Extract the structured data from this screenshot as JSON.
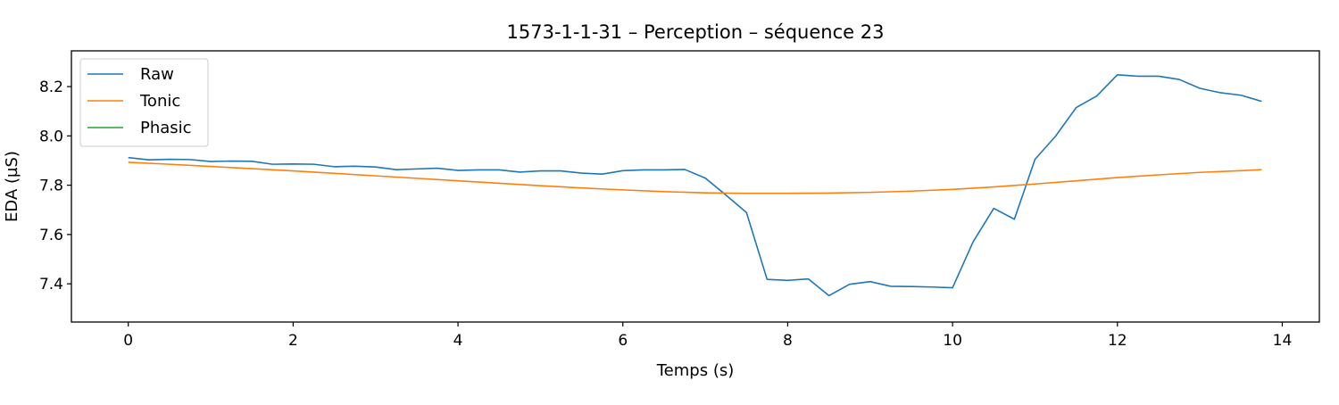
{
  "chart_data": {
    "type": "line",
    "title": "1573-1-1-31 – Perception – séquence 23",
    "xlabel": "Temps (s)",
    "ylabel": "EDA (µS)",
    "xlim": [
      -0.69,
      14.45
    ],
    "ylim": [
      7.245,
      8.345
    ],
    "xticks": [
      0,
      2,
      4,
      6,
      8,
      10,
      12,
      14
    ],
    "xtick_labels": [
      "0",
      "2",
      "4",
      "6",
      "8",
      "10",
      "12",
      "14"
    ],
    "yticks": [
      7.4,
      7.6,
      7.8,
      8.0,
      8.2
    ],
    "ytick_labels": [
      "7.4",
      "7.6",
      "7.8",
      "8.0",
      "8.2"
    ],
    "grid": false,
    "legend_position": "upper-left",
    "series": [
      {
        "name": "Raw",
        "color": "#1f77b4",
        "x": [
          0,
          0.25,
          0.5,
          0.75,
          1.0,
          1.25,
          1.5,
          1.75,
          2.0,
          2.25,
          2.5,
          2.75,
          3.0,
          3.25,
          3.5,
          3.75,
          4.0,
          4.25,
          4.5,
          4.75,
          5.0,
          5.25,
          5.5,
          5.75,
          6.0,
          6.25,
          6.5,
          6.75,
          7.0,
          7.25,
          7.5,
          7.75,
          8.0,
          8.25,
          8.5,
          8.75,
          9.0,
          9.25,
          9.5,
          9.75,
          10.0,
          10.25,
          10.5,
          10.75,
          11.0,
          11.25,
          11.5,
          11.75,
          12.0,
          12.25,
          12.5,
          12.75,
          13.0,
          13.25,
          13.5,
          13.75
        ],
        "y": [
          7.912,
          7.903,
          7.905,
          7.904,
          7.896,
          7.898,
          7.897,
          7.885,
          7.886,
          7.885,
          7.875,
          7.877,
          7.874,
          7.863,
          7.866,
          7.869,
          7.86,
          7.862,
          7.862,
          7.853,
          7.858,
          7.858,
          7.849,
          7.845,
          7.859,
          7.862,
          7.862,
          7.864,
          7.829,
          7.76,
          7.689,
          7.418,
          7.414,
          7.42,
          7.352,
          7.398,
          7.409,
          7.39,
          7.389,
          7.387,
          7.384,
          7.571,
          7.706,
          7.662,
          7.905,
          7.999,
          8.115,
          8.162,
          8.248,
          8.242,
          8.242,
          8.229,
          8.193,
          8.175,
          8.165,
          8.14
        ]
      },
      {
        "name": "Tonic",
        "color": "#ff7f0e",
        "x": [
          0,
          0.5,
          1.0,
          1.5,
          2.0,
          2.5,
          3.0,
          3.5,
          4.0,
          4.5,
          5.0,
          5.5,
          6.0,
          6.5,
          7.0,
          7.5,
          8.0,
          8.5,
          9.0,
          9.5,
          10.0,
          10.5,
          11.0,
          11.5,
          12.0,
          12.5,
          13.0,
          13.5,
          13.75
        ],
        "y": [
          7.893,
          7.885,
          7.876,
          7.867,
          7.858,
          7.848,
          7.838,
          7.828,
          7.818,
          7.808,
          7.798,
          7.789,
          7.781,
          7.774,
          7.769,
          7.767,
          7.767,
          7.768,
          7.771,
          7.776,
          7.783,
          7.793,
          7.805,
          7.818,
          7.831,
          7.842,
          7.852,
          7.859,
          7.863
        ]
      },
      {
        "name": "Phasic",
        "color": "#2ca02c",
        "x": [],
        "y": []
      }
    ]
  }
}
